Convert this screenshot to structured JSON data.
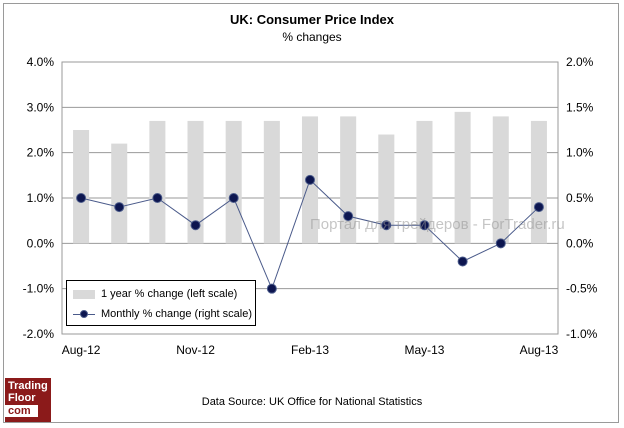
{
  "chart_data": {
    "type": "bar+line",
    "title": "UK: Consumer Price Index",
    "subtitle": "% changes",
    "categories": [
      "Aug-12",
      "Sep-12",
      "Oct-12",
      "Nov-12",
      "Dec-12",
      "Jan-13",
      "Feb-13",
      "Mar-13",
      "Apr-13",
      "May-13",
      "Jun-13",
      "Jul-13",
      "Aug-13"
    ],
    "x_tick_labels": [
      "Aug-12",
      "Nov-12",
      "Feb-13",
      "May-13",
      "Aug-13"
    ],
    "x_tick_indices": [
      0,
      3,
      6,
      9,
      12
    ],
    "series": [
      {
        "name": "1 year % change (left scale)",
        "type": "bar",
        "axis": "left",
        "color": "#d9d9d9",
        "values": [
          2.5,
          2.2,
          2.7,
          2.7,
          2.7,
          2.7,
          2.8,
          2.8,
          2.4,
          2.7,
          2.9,
          2.8,
          2.7
        ]
      },
      {
        "name": "Monthly % change (right scale)",
        "type": "line",
        "axis": "right",
        "color": "#0d1650",
        "values": [
          0.5,
          0.4,
          0.5,
          0.2,
          0.5,
          -0.5,
          0.7,
          0.3,
          0.2,
          0.2,
          -0.2,
          0.0,
          0.4
        ]
      }
    ],
    "left_axis": {
      "min": -2.0,
      "max": 4.0,
      "step": 1.0,
      "labels": [
        "-2.0%",
        "-1.0%",
        "0.0%",
        "1.0%",
        "2.0%",
        "3.0%",
        "4.0%"
      ]
    },
    "right_axis": {
      "min": -1.0,
      "max": 2.0,
      "step": 0.5,
      "labels": [
        "-1.0%",
        "-0.5%",
        "0.0%",
        "0.5%",
        "1.0%",
        "1.5%",
        "2.0%"
      ]
    },
    "grid": true,
    "legend_position": "bottom-left"
  },
  "source_text": "Data Source: UK Office for National Statistics",
  "logo": {
    "line1": "Trading",
    "line2": "Floor",
    "line3": "com"
  },
  "watermark": "Портал для трейдеров - ForTrader.ru"
}
